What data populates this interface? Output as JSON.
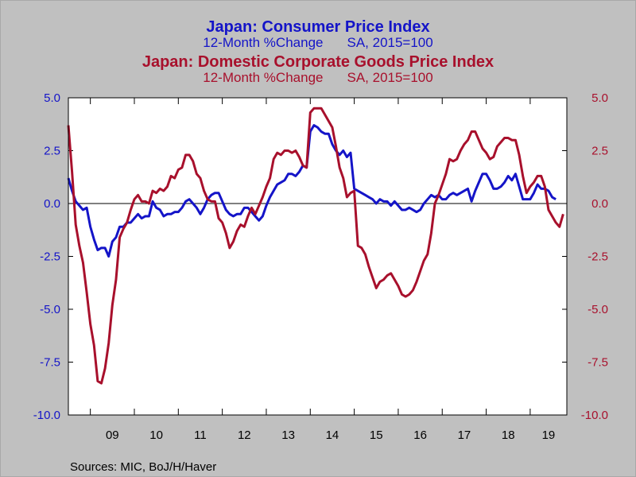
{
  "titles": {
    "cpi_title": "Japan: Consumer Price Index",
    "cpi_sub_a": "12-Month %Change",
    "cpi_sub_b": "SA, 2015=100",
    "cgpi_title": "Japan: Domestic Corporate Goods Price Index",
    "cgpi_sub_a": "12-Month %Change",
    "cgpi_sub_b": "SA, 2015=100"
  },
  "source": "Sources:  MIC, BoJ/H/Haver",
  "colors": {
    "cpi": "#1414c8",
    "cgpi": "#a8102c",
    "plot_bg": "#ffffff",
    "page_bg": "#c0c0c0"
  },
  "chart_data": {
    "type": "line",
    "x_start": "2008-07",
    "x_end": "2019-10",
    "frequency": "monthly",
    "x_tick_labels": [
      "09",
      "10",
      "11",
      "12",
      "13",
      "14",
      "15",
      "16",
      "17",
      "18",
      "19"
    ],
    "ylim_left": [
      -10,
      5
    ],
    "ylim_right": [
      -10,
      5
    ],
    "yticks_left": [
      "5.0",
      "2.5",
      "0.0",
      "-2.5",
      "-5.0",
      "-7.5",
      "-10.0"
    ],
    "yticks_right": [
      "5.0",
      "2.5",
      "0.0",
      "-2.5",
      "-5.0",
      "-7.5",
      "-10.0"
    ],
    "zero_line": true,
    "grid": false,
    "series": [
      {
        "name": "Japan: Consumer Price Index",
        "axis": "left",
        "points": [
          [
            "2008-07",
            1.2
          ],
          [
            "2008-08",
            0.6
          ],
          [
            "2008-09",
            0.1
          ],
          [
            "2008-10",
            -0.1
          ],
          [
            "2008-11",
            -0.3
          ],
          [
            "2008-12",
            -0.2
          ],
          [
            "2009-01",
            -1.1
          ],
          [
            "2009-02",
            -1.7
          ],
          [
            "2009-03",
            -2.2
          ],
          [
            "2009-04",
            -2.1
          ],
          [
            "2009-05",
            -2.1
          ],
          [
            "2009-06",
            -2.5
          ],
          [
            "2009-07",
            -1.8
          ],
          [
            "2009-08",
            -1.6
          ],
          [
            "2009-09",
            -1.1
          ],
          [
            "2009-10",
            -1.1
          ],
          [
            "2009-11",
            -0.9
          ],
          [
            "2009-12",
            -0.9
          ],
          [
            "2010-01",
            -0.7
          ],
          [
            "2010-02",
            -0.5
          ],
          [
            "2010-03",
            -0.7
          ],
          [
            "2010-04",
            -0.6
          ],
          [
            "2010-05",
            -0.6
          ],
          [
            "2010-06",
            0.1
          ],
          [
            "2010-07",
            -0.2
          ],
          [
            "2010-08",
            -0.3
          ],
          [
            "2010-09",
            -0.6
          ],
          [
            "2010-10",
            -0.5
          ],
          [
            "2010-11",
            -0.5
          ],
          [
            "2010-12",
            -0.4
          ],
          [
            "2011-01",
            -0.4
          ],
          [
            "2011-02",
            -0.2
          ],
          [
            "2011-03",
            0.1
          ],
          [
            "2011-04",
            0.2
          ],
          [
            "2011-05",
            0.0
          ],
          [
            "2011-06",
            -0.2
          ],
          [
            "2011-07",
            -0.5
          ],
          [
            "2011-08",
            -0.2
          ],
          [
            "2011-09",
            0.2
          ],
          [
            "2011-10",
            0.4
          ],
          [
            "2011-11",
            0.5
          ],
          [
            "2011-12",
            0.5
          ],
          [
            "2012-01",
            0.1
          ],
          [
            "2012-02",
            -0.3
          ],
          [
            "2012-03",
            -0.5
          ],
          [
            "2012-04",
            -0.6
          ],
          [
            "2012-05",
            -0.5
          ],
          [
            "2012-06",
            -0.5
          ],
          [
            "2012-07",
            -0.2
          ],
          [
            "2012-08",
            -0.2
          ],
          [
            "2012-09",
            -0.4
          ],
          [
            "2012-10",
            -0.6
          ],
          [
            "2012-11",
            -0.8
          ],
          [
            "2012-12",
            -0.6
          ],
          [
            "2013-01",
            -0.1
          ],
          [
            "2013-02",
            0.3
          ],
          [
            "2013-03",
            0.6
          ],
          [
            "2013-04",
            0.9
          ],
          [
            "2013-05",
            1.0
          ],
          [
            "2013-06",
            1.1
          ],
          [
            "2013-07",
            1.4
          ],
          [
            "2013-08",
            1.4
          ],
          [
            "2013-09",
            1.3
          ],
          [
            "2013-10",
            1.5
          ],
          [
            "2013-11",
            1.8
          ],
          [
            "2013-12",
            1.7
          ],
          [
            "2014-01",
            3.4
          ],
          [
            "2014-02",
            3.7
          ],
          [
            "2014-03",
            3.6
          ],
          [
            "2014-04",
            3.4
          ],
          [
            "2014-05",
            3.3
          ],
          [
            "2014-06",
            3.3
          ],
          [
            "2014-07",
            2.8
          ],
          [
            "2014-08",
            2.5
          ],
          [
            "2014-09",
            2.3
          ],
          [
            "2014-10",
            2.5
          ],
          [
            "2014-11",
            2.2
          ],
          [
            "2014-12",
            2.4
          ],
          [
            "2015-01",
            0.7
          ],
          [
            "2015-02",
            0.6
          ],
          [
            "2015-03",
            0.5
          ],
          [
            "2015-04",
            0.4
          ],
          [
            "2015-05",
            0.3
          ],
          [
            "2015-06",
            0.2
          ],
          [
            "2015-07",
            0.0
          ],
          [
            "2015-08",
            0.2
          ],
          [
            "2015-09",
            0.1
          ],
          [
            "2015-10",
            0.1
          ],
          [
            "2015-11",
            -0.1
          ],
          [
            "2015-12",
            0.1
          ],
          [
            "2016-01",
            -0.1
          ],
          [
            "2016-02",
            -0.3
          ],
          [
            "2016-03",
            -0.3
          ],
          [
            "2016-04",
            -0.2
          ],
          [
            "2016-05",
            -0.3
          ],
          [
            "2016-06",
            -0.4
          ],
          [
            "2016-07",
            -0.3
          ],
          [
            "2016-08",
            0.0
          ],
          [
            "2016-09",
            0.2
          ],
          [
            "2016-10",
            0.4
          ],
          [
            "2016-11",
            0.3
          ],
          [
            "2016-12",
            0.4
          ],
          [
            "2017-01",
            0.2
          ],
          [
            "2017-02",
            0.2
          ],
          [
            "2017-03",
            0.4
          ],
          [
            "2017-04",
            0.5
          ],
          [
            "2017-05",
            0.4
          ],
          [
            "2017-06",
            0.5
          ],
          [
            "2017-07",
            0.6
          ],
          [
            "2017-08",
            0.7
          ],
          [
            "2017-09",
            0.1
          ],
          [
            "2017-10",
            0.6
          ],
          [
            "2017-11",
            1.0
          ],
          [
            "2017-12",
            1.4
          ],
          [
            "2018-01",
            1.4
          ],
          [
            "2018-02",
            1.1
          ],
          [
            "2018-03",
            0.7
          ],
          [
            "2018-04",
            0.7
          ],
          [
            "2018-05",
            0.8
          ],
          [
            "2018-06",
            1.0
          ],
          [
            "2018-07",
            1.3
          ],
          [
            "2018-08",
            1.1
          ],
          [
            "2018-09",
            1.4
          ],
          [
            "2018-10",
            0.8
          ],
          [
            "2018-11",
            0.2
          ],
          [
            "2018-12",
            0.2
          ],
          [
            "2019-01",
            0.2
          ],
          [
            "2019-02",
            0.5
          ],
          [
            "2019-03",
            0.9
          ],
          [
            "2019-04",
            0.7
          ],
          [
            "2019-05",
            0.7
          ],
          [
            "2019-06",
            0.6
          ],
          [
            "2019-07",
            0.3
          ],
          [
            "2019-08",
            0.2
          ]
        ]
      },
      {
        "name": "Japan: Domestic Corporate Goods Price Index",
        "axis": "right",
        "points": [
          [
            "2008-07",
            3.7
          ],
          [
            "2008-08",
            1.5
          ],
          [
            "2008-09",
            -1.0
          ],
          [
            "2008-10",
            -2.0
          ],
          [
            "2008-11",
            -2.8
          ],
          [
            "2008-12",
            -4.2
          ],
          [
            "2009-01",
            -5.7
          ],
          [
            "2009-02",
            -6.7
          ],
          [
            "2009-03",
            -8.4
          ],
          [
            "2009-04",
            -8.5
          ],
          [
            "2009-05",
            -7.8
          ],
          [
            "2009-06",
            -6.6
          ],
          [
            "2009-07",
            -4.8
          ],
          [
            "2009-08",
            -3.6
          ],
          [
            "2009-09",
            -1.6
          ],
          [
            "2009-10",
            -1.2
          ],
          [
            "2009-11",
            -0.9
          ],
          [
            "2009-12",
            -0.3
          ],
          [
            "2010-01",
            0.2
          ],
          [
            "2010-02",
            0.4
          ],
          [
            "2010-03",
            0.1
          ],
          [
            "2010-04",
            0.1
          ],
          [
            "2010-05",
            0.0
          ],
          [
            "2010-06",
            0.6
          ],
          [
            "2010-07",
            0.5
          ],
          [
            "2010-08",
            0.7
          ],
          [
            "2010-09",
            0.6
          ],
          [
            "2010-10",
            0.8
          ],
          [
            "2010-11",
            1.3
          ],
          [
            "2010-12",
            1.2
          ],
          [
            "2011-01",
            1.6
          ],
          [
            "2011-02",
            1.7
          ],
          [
            "2011-03",
            2.3
          ],
          [
            "2011-04",
            2.3
          ],
          [
            "2011-05",
            2.0
          ],
          [
            "2011-06",
            1.4
          ],
          [
            "2011-07",
            1.2
          ],
          [
            "2011-08",
            0.6
          ],
          [
            "2011-09",
            0.2
          ],
          [
            "2011-10",
            0.1
          ],
          [
            "2011-11",
            0.1
          ],
          [
            "2011-12",
            -0.7
          ],
          [
            "2012-01",
            -0.9
          ],
          [
            "2012-02",
            -1.4
          ],
          [
            "2012-03",
            -2.1
          ],
          [
            "2012-04",
            -1.8
          ],
          [
            "2012-05",
            -1.3
          ],
          [
            "2012-06",
            -1.0
          ],
          [
            "2012-07",
            -1.1
          ],
          [
            "2012-08",
            -0.6
          ],
          [
            "2012-09",
            -0.2
          ],
          [
            "2012-10",
            -0.5
          ],
          [
            "2012-11",
            -0.1
          ],
          [
            "2012-12",
            0.3
          ],
          [
            "2013-01",
            0.8
          ],
          [
            "2013-02",
            1.2
          ],
          [
            "2013-03",
            2.1
          ],
          [
            "2013-04",
            2.4
          ],
          [
            "2013-05",
            2.3
          ],
          [
            "2013-06",
            2.5
          ],
          [
            "2013-07",
            2.5
          ],
          [
            "2013-08",
            2.4
          ],
          [
            "2013-09",
            2.5
          ],
          [
            "2013-10",
            2.2
          ],
          [
            "2013-11",
            1.8
          ],
          [
            "2013-12",
            1.7
          ],
          [
            "2014-01",
            4.3
          ],
          [
            "2014-02",
            4.5
          ],
          [
            "2014-03",
            4.5
          ],
          [
            "2014-04",
            4.5
          ],
          [
            "2014-05",
            4.2
          ],
          [
            "2014-06",
            3.9
          ],
          [
            "2014-07",
            3.6
          ],
          [
            "2014-08",
            2.7
          ],
          [
            "2014-09",
            1.7
          ],
          [
            "2014-10",
            1.2
          ],
          [
            "2014-11",
            0.3
          ],
          [
            "2014-12",
            0.5
          ],
          [
            "2015-01",
            0.6
          ],
          [
            "2015-02",
            -2.0
          ],
          [
            "2015-03",
            -2.1
          ],
          [
            "2015-04",
            -2.4
          ],
          [
            "2015-05",
            -3.0
          ],
          [
            "2015-06",
            -3.5
          ],
          [
            "2015-07",
            -4.0
          ],
          [
            "2015-08",
            -3.7
          ],
          [
            "2015-09",
            -3.6
          ],
          [
            "2015-10",
            -3.4
          ],
          [
            "2015-11",
            -3.3
          ],
          [
            "2015-12",
            -3.6
          ],
          [
            "2016-01",
            -3.9
          ],
          [
            "2016-02",
            -4.3
          ],
          [
            "2016-03",
            -4.4
          ],
          [
            "2016-04",
            -4.3
          ],
          [
            "2016-05",
            -4.1
          ],
          [
            "2016-06",
            -3.7
          ],
          [
            "2016-07",
            -3.2
          ],
          [
            "2016-08",
            -2.7
          ],
          [
            "2016-09",
            -2.4
          ],
          [
            "2016-10",
            -1.4
          ],
          [
            "2016-11",
            0.0
          ],
          [
            "2016-12",
            0.4
          ],
          [
            "2017-01",
            0.9
          ],
          [
            "2017-02",
            1.4
          ],
          [
            "2017-03",
            2.1
          ],
          [
            "2017-04",
            2.0
          ],
          [
            "2017-05",
            2.1
          ],
          [
            "2017-06",
            2.5
          ],
          [
            "2017-07",
            2.8
          ],
          [
            "2017-08",
            3.0
          ],
          [
            "2017-09",
            3.4
          ],
          [
            "2017-10",
            3.4
          ],
          [
            "2017-11",
            3.0
          ],
          [
            "2017-12",
            2.6
          ],
          [
            "2018-01",
            2.4
          ],
          [
            "2018-02",
            2.1
          ],
          [
            "2018-03",
            2.2
          ],
          [
            "2018-04",
            2.7
          ],
          [
            "2018-05",
            2.9
          ],
          [
            "2018-06",
            3.1
          ],
          [
            "2018-07",
            3.1
          ],
          [
            "2018-08",
            3.0
          ],
          [
            "2018-09",
            3.0
          ],
          [
            "2018-10",
            2.3
          ],
          [
            "2018-11",
            1.3
          ],
          [
            "2018-12",
            0.5
          ],
          [
            "2019-01",
            0.8
          ],
          [
            "2019-02",
            1.0
          ],
          [
            "2019-03",
            1.3
          ],
          [
            "2019-04",
            1.3
          ],
          [
            "2019-05",
            0.8
          ],
          [
            "2019-06",
            -0.3
          ],
          [
            "2019-07",
            -0.6
          ],
          [
            "2019-08",
            -0.9
          ],
          [
            "2019-09",
            -1.1
          ],
          [
            "2019-10",
            -0.5
          ]
        ]
      }
    ]
  }
}
